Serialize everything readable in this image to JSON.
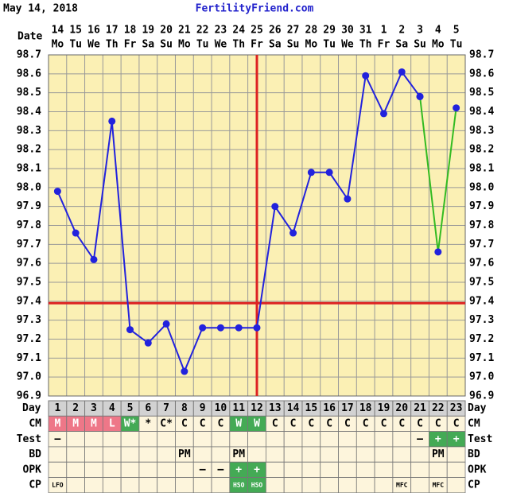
{
  "header": {
    "date": "May 14, 2018",
    "site": "FertilityFriend.com"
  },
  "chart_data": {
    "type": "line",
    "date_label": "Date",
    "categories": [
      "14",
      "15",
      "16",
      "17",
      "18",
      "19",
      "20",
      "21",
      "22",
      "23",
      "24",
      "25",
      "26",
      "27",
      "28",
      "29",
      "30",
      "31",
      "1",
      "2",
      "3",
      "4",
      "5"
    ],
    "weekdays": [
      "Mo",
      "Tu",
      "We",
      "Th",
      "Fr",
      "Sa",
      "Su",
      "Mo",
      "Tu",
      "We",
      "Th",
      "Fr",
      "Sa",
      "Su",
      "Mo",
      "Tu",
      "We",
      "Th",
      "Fr",
      "Sa",
      "Su",
      "Mo",
      "Tu"
    ],
    "cycle_day_label": "Day",
    "cycle_days": [
      1,
      2,
      3,
      4,
      5,
      6,
      7,
      8,
      9,
      10,
      11,
      12,
      13,
      14,
      15,
      16,
      17,
      18,
      19,
      20,
      21,
      22,
      23
    ],
    "series": [
      {
        "color": "#2222dd",
        "marker_color": "#2222dd",
        "values": [
          97.98,
          97.76,
          97.62,
          98.35,
          97.25,
          97.18,
          97.28,
          97.03,
          97.26,
          97.26,
          97.26,
          97.26,
          97.9,
          97.76,
          98.08,
          98.08,
          97.94,
          98.59,
          98.39,
          98.61,
          98.48,
          null,
          null
        ]
      },
      {
        "color": "#33bb22",
        "marker_color": "#2222dd",
        "values": [
          null,
          null,
          null,
          null,
          null,
          null,
          null,
          null,
          null,
          null,
          null,
          null,
          null,
          null,
          null,
          null,
          null,
          null,
          null,
          null,
          98.48,
          97.66,
          98.42
        ]
      }
    ],
    "coverline": 97.39,
    "coverline_color": "#dd2222",
    "ovulation_day": 12,
    "ovulation_color": "#dd2222",
    "ylim": [
      96.9,
      98.7
    ],
    "yticks": [
      96.9,
      {
        "value": 97.0,
        "label": "97.0"
      },
      97.1,
      97.2,
      97.3,
      97.4,
      97.5,
      97.6,
      97.7,
      97.8,
      97.9,
      {
        "value": 98.0,
        "label": "98.0"
      },
      98.1,
      98.2,
      98.3,
      98.4,
      98.5,
      98.6,
      98.7
    ],
    "grid": true,
    "rows": [
      {
        "label": "CM",
        "cells": [
          "M",
          "M",
          "M",
          "L",
          "W*",
          "*",
          "C*",
          "C",
          "C",
          "C",
          "W",
          "W",
          "C",
          "C",
          "C",
          "C",
          "C",
          "C",
          "C",
          "C",
          "C",
          "C",
          "C"
        ],
        "colors": [
          "#ee7788",
          "#ee7788",
          "#ee7788",
          "#ee7788",
          "#44aa55",
          null,
          null,
          null,
          null,
          null,
          "#44aa55",
          "#44aa55",
          null,
          null,
          null,
          null,
          null,
          null,
          null,
          null,
          null,
          null,
          null
        ]
      },
      {
        "label": "Test",
        "cells": [
          "–",
          null,
          null,
          null,
          null,
          null,
          null,
          null,
          null,
          null,
          null,
          null,
          null,
          null,
          null,
          null,
          null,
          null,
          null,
          null,
          "–",
          "+",
          "+"
        ],
        "colors": [
          null,
          null,
          null,
          null,
          null,
          null,
          null,
          null,
          null,
          null,
          null,
          null,
          null,
          null,
          null,
          null,
          null,
          null,
          null,
          null,
          null,
          "#44aa55",
          "#44aa55"
        ]
      },
      {
        "label": "BD",
        "cells": [
          null,
          null,
          null,
          null,
          null,
          null,
          null,
          "PM",
          null,
          null,
          "PM",
          null,
          null,
          null,
          null,
          null,
          null,
          null,
          null,
          null,
          null,
          "PM",
          null
        ],
        "colors": [
          null,
          null,
          null,
          null,
          null,
          null,
          null,
          null,
          null,
          null,
          null,
          null,
          null,
          null,
          null,
          null,
          null,
          null,
          null,
          null,
          null,
          null,
          null
        ]
      },
      {
        "label": "OPK",
        "cells": [
          null,
          null,
          null,
          null,
          null,
          null,
          null,
          null,
          "–",
          "–",
          "+",
          "+",
          null,
          null,
          null,
          null,
          null,
          null,
          null,
          null,
          null,
          null,
          null
        ],
        "colors": [
          null,
          null,
          null,
          null,
          null,
          null,
          null,
          null,
          null,
          null,
          "#44aa55",
          "#44aa55",
          null,
          null,
          null,
          null,
          null,
          null,
          null,
          null,
          null,
          null,
          null
        ]
      },
      {
        "label": "CP",
        "cells": [
          "LFO",
          null,
          null,
          null,
          null,
          null,
          null,
          null,
          null,
          null,
          "HSO",
          "HSO",
          null,
          null,
          null,
          null,
          null,
          null,
          null,
          "MFC",
          null,
          "MFC",
          null
        ],
        "colors": [
          null,
          null,
          null,
          null,
          null,
          null,
          null,
          null,
          null,
          null,
          "#44aa55",
          "#44aa55",
          null,
          null,
          null,
          null,
          null,
          null,
          null,
          null,
          null,
          null,
          null
        ]
      }
    ]
  }
}
